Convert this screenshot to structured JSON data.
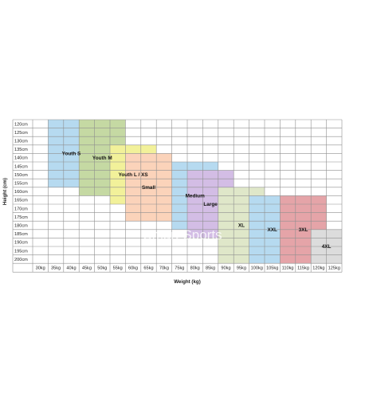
{
  "chart_data": {
    "type": "heatmap",
    "title": "",
    "xlabel": "Weight (kg)",
    "ylabel": "Height (cm)",
    "watermark": "Smart Sports",
    "x_categories": [
      "30kg",
      "35kg",
      "40kg",
      "45kg",
      "50kg",
      "55kg",
      "60kg",
      "65kg",
      "70kg",
      "75kg",
      "80kg",
      "85kg",
      "90kg",
      "95kg",
      "100kg",
      "105kg",
      "110kg",
      "115kg",
      "120kg",
      "125kg"
    ],
    "y_categories": [
      "120cm",
      "125cm",
      "130cm",
      "135cm",
      "140cm",
      "145cm",
      "150cm",
      "155cm",
      "160cm",
      "165cm",
      "170cm",
      "175cm",
      "180cm",
      "185cm",
      "190cm",
      "195cm",
      "200cm"
    ],
    "grid": true,
    "sizes": [
      {
        "label": "Youth S",
        "color": "#b6daf0",
        "weight_range": [
          "35kg",
          "45kg"
        ],
        "height_range": [
          "120cm",
          "155cm"
        ]
      },
      {
        "label": "Youth M",
        "color": "#c5d9a3",
        "weight_range": [
          "45kg",
          "55kg"
        ],
        "height_range": [
          "120cm",
          "160cm"
        ]
      },
      {
        "label": "Youth L / XS",
        "color": "#f2f19a",
        "weight_range": [
          "55kg",
          "65kg"
        ],
        "height_range": [
          "135cm",
          "165cm"
        ]
      },
      {
        "label": "Small",
        "color": "#fbd3ba",
        "weight_range": [
          "60kg",
          "70kg"
        ],
        "height_range": [
          "140cm",
          "175cm"
        ]
      },
      {
        "label": "Medium",
        "color": "#b6daf0",
        "weight_range": [
          "75kg",
          "85kg"
        ],
        "height_range": [
          "145cm",
          "180cm"
        ]
      },
      {
        "label": "Large",
        "color": "#d3bde5",
        "weight_range": [
          "80kg",
          "90kg"
        ],
        "height_range": [
          "150cm",
          "185cm"
        ]
      },
      {
        "label": "XL",
        "color": "#dfe7c9",
        "weight_range": [
          "90kg",
          "100kg"
        ],
        "height_range": [
          "160cm",
          "200cm"
        ]
      },
      {
        "label": "XXL",
        "color": "#b6daf0",
        "weight_range": [
          "100kg",
          "110kg"
        ],
        "height_range": [
          "165cm",
          "200cm"
        ]
      },
      {
        "label": "3XL",
        "color": "#e5a4a8",
        "weight_range": [
          "110kg",
          "120kg"
        ],
        "height_range": [
          "165cm",
          "200cm"
        ]
      },
      {
        "label": "4XL",
        "color": "#dcdcdc",
        "weight_range": [
          "120kg",
          "125kg"
        ],
        "height_range": [
          "185cm",
          "200cm"
        ]
      }
    ]
  }
}
